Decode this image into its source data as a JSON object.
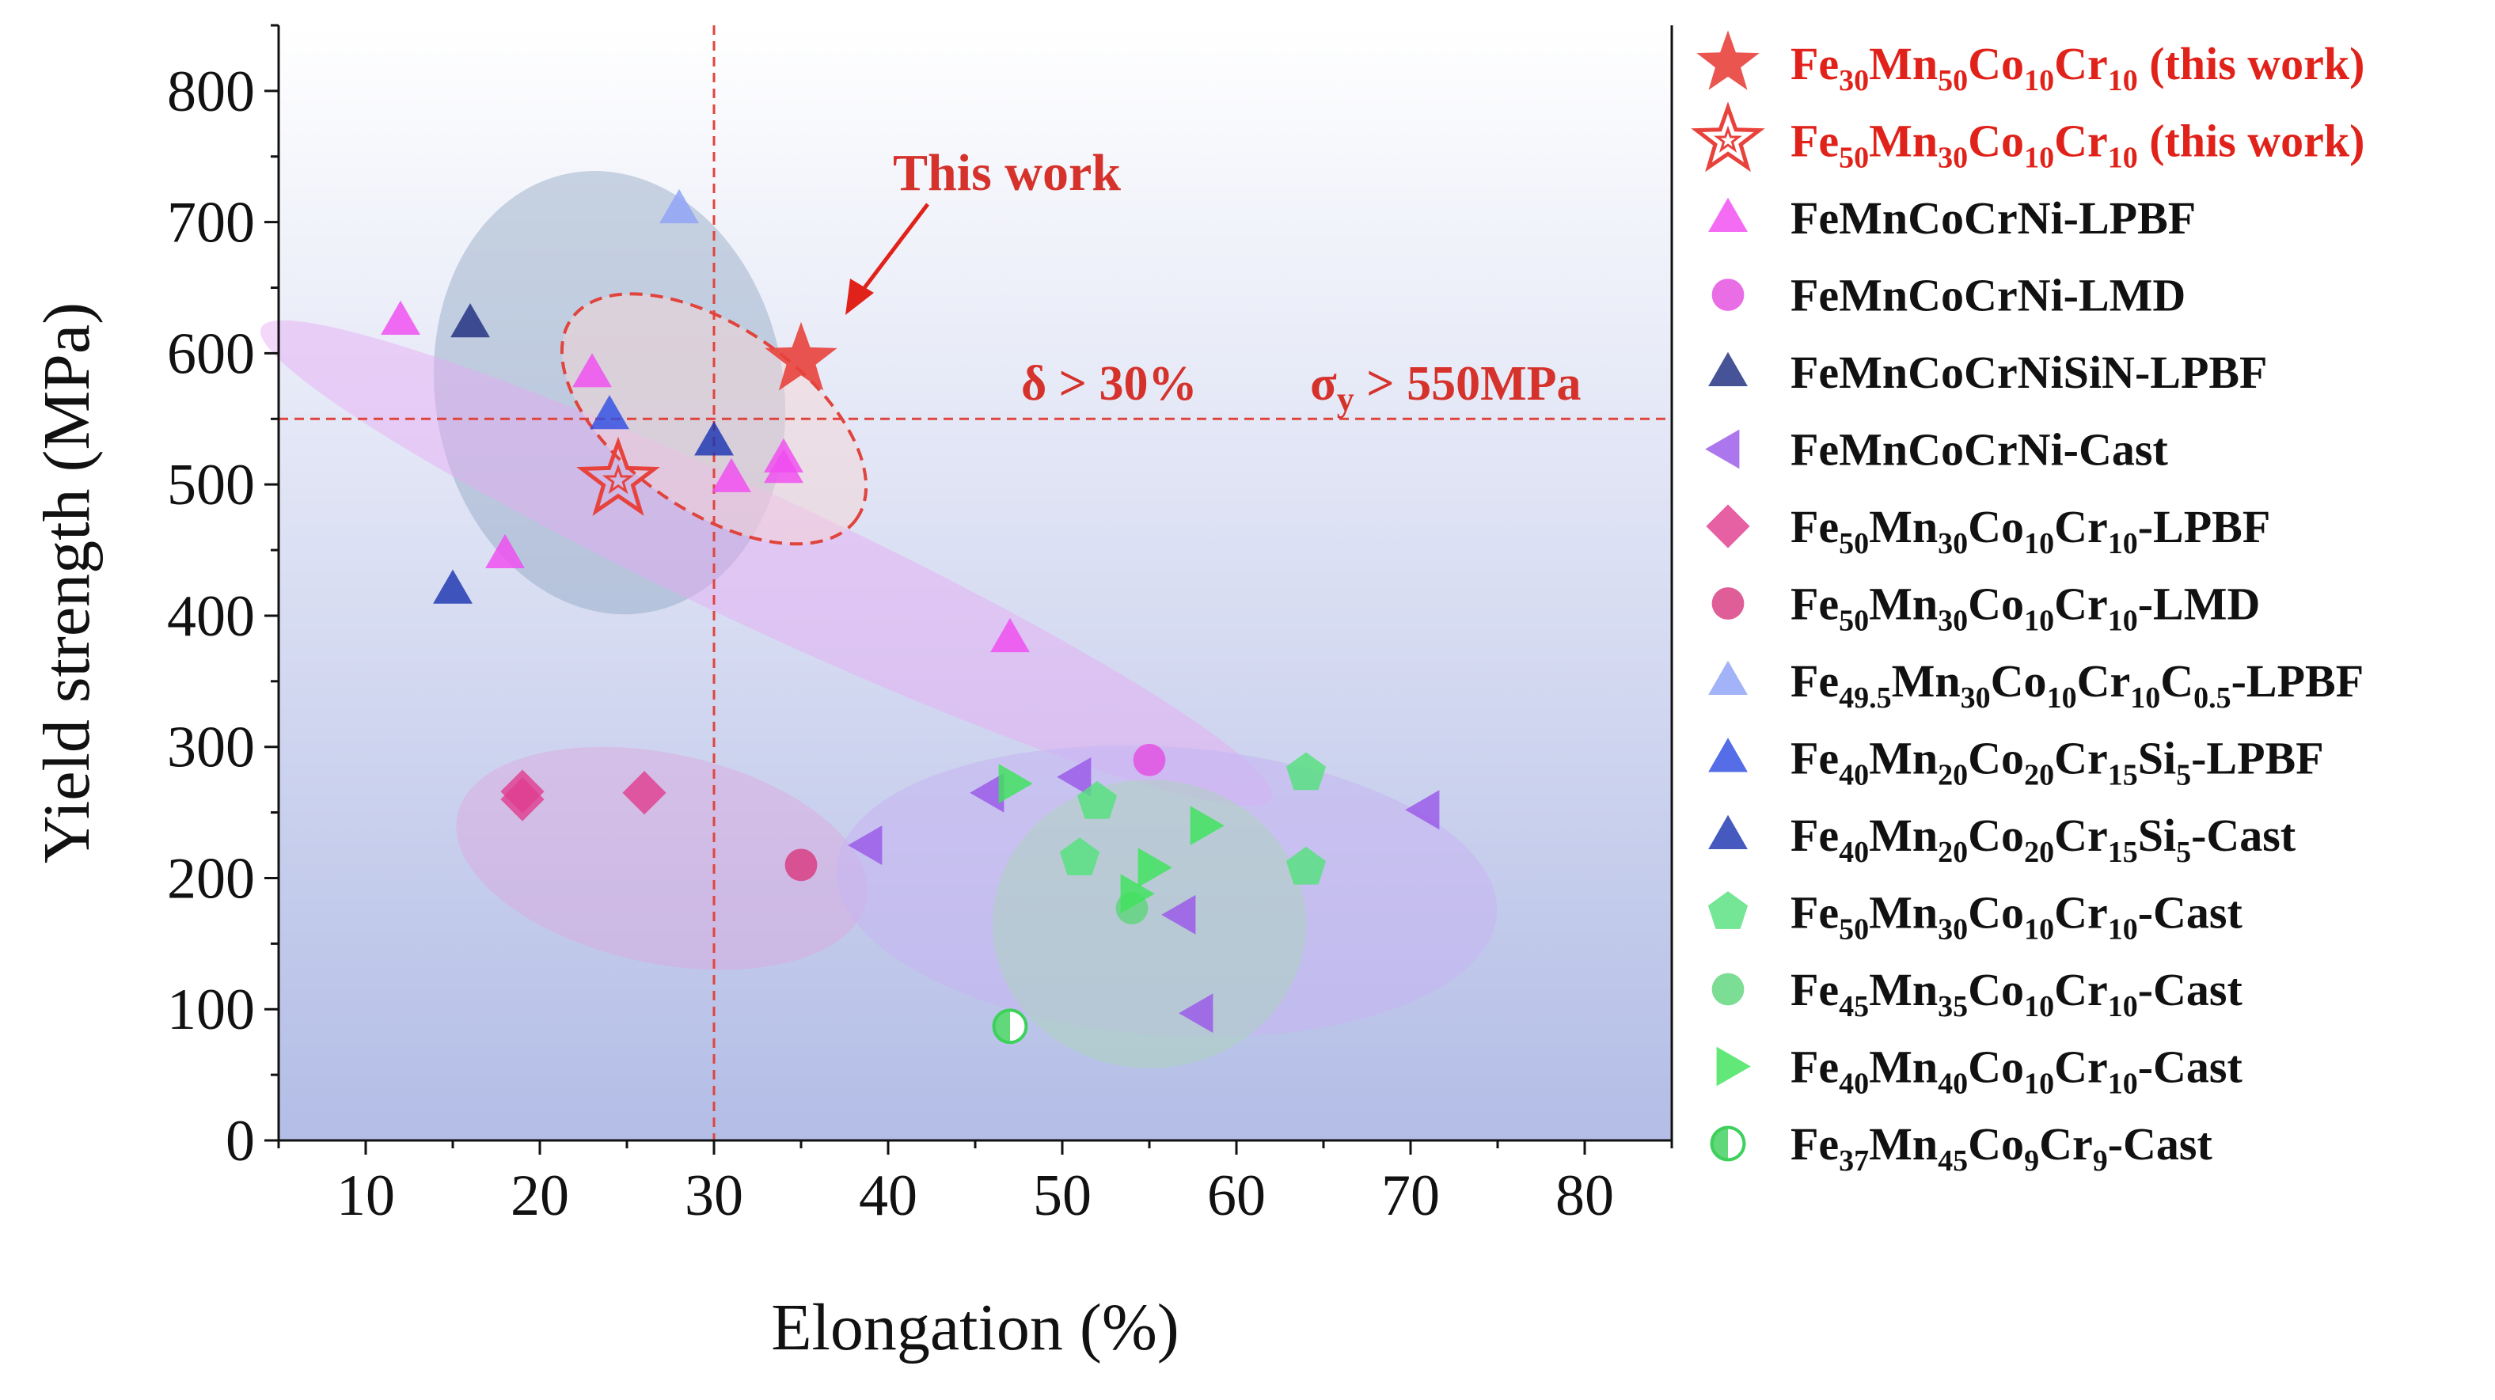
{
  "chart_data": {
    "type": "scatter",
    "xlabel": "Elongation (%)",
    "ylabel": "Yield strength (MPa)",
    "xlim": [
      5,
      85
    ],
    "ylim": [
      0,
      850
    ],
    "xticks": [
      10,
      20,
      30,
      40,
      50,
      60,
      70,
      80
    ],
    "yticks": [
      0,
      100,
      200,
      300,
      400,
      500,
      600,
      700,
      800
    ],
    "grid": false,
    "legend_placement": "right",
    "reference_lines": {
      "x": 30,
      "y": 550
    },
    "annotations": {
      "this_work": "This work",
      "delta": "δ > 30%",
      "sigma": "σ",
      "sigma_sub": "y",
      "sigma_rest": " > 550MPa"
    },
    "regions": [
      {
        "cx": 24,
        "cy": 570,
        "rx": 10,
        "ry": 170,
        "rot": -10,
        "fill": "#8fa3c2",
        "opacity": 0.45
      },
      {
        "cx": 33,
        "cy": 440,
        "rx": 32,
        "ry": 50,
        "rot": 25,
        "fill": "#e7a8f5",
        "opacity": 0.45
      },
      {
        "cx": 27,
        "cy": 215,
        "rx": 12,
        "ry": 80,
        "rot": 12,
        "fill": "#dca6dd",
        "opacity": 0.45
      },
      {
        "cx": 56,
        "cy": 190,
        "rx": 19,
        "ry": 110,
        "rot": 4,
        "fill": "#c7b4f2",
        "opacity": 0.55
      },
      {
        "cx": 55,
        "cy": 165,
        "rx": 9,
        "ry": 110,
        "rot": 0,
        "fill": "#a8d6b6",
        "opacity": 0.45
      },
      {
        "cx": 30,
        "cy": 550,
        "rx": 10,
        "ry": 70,
        "rot": 35,
        "fill": "#f5d5d5",
        "opacity": 0.5,
        "dashed": true,
        "stroke": "#e0443c"
      }
    ],
    "series": [
      {
        "name": "Fe30Mn50Co10Cr10 (this work)",
        "label_parts": [
          [
            "Fe",
            ""
          ],
          [
            "30",
            "sub"
          ],
          [
            "Mn",
            ""
          ],
          [
            "50",
            "sub"
          ],
          [
            "Co",
            ""
          ],
          [
            "10",
            "sub"
          ],
          [
            "Cr",
            ""
          ],
          [
            "10",
            "sub"
          ],
          [
            " (this work)",
            ""
          ]
        ],
        "marker": "star",
        "color": "#e8423c",
        "text_color": "#e0221a",
        "points": [
          [
            35,
            595
          ]
        ]
      },
      {
        "name": "Fe50Mn30Co10Cr10 (this work)",
        "label_parts": [
          [
            "Fe",
            ""
          ],
          [
            "50",
            "sub"
          ],
          [
            "Mn",
            ""
          ],
          [
            "30",
            "sub"
          ],
          [
            "Co",
            ""
          ],
          [
            "10",
            "sub"
          ],
          [
            "Cr",
            ""
          ],
          [
            "10",
            "sub"
          ],
          [
            " (this work)",
            ""
          ]
        ],
        "marker": "star-open",
        "color": "#e8423c",
        "text_color": "#e0221a",
        "points": [
          [
            24.5,
            503
          ]
        ]
      },
      {
        "name": "FeMnCoCrNi-LPBF",
        "label_parts": [
          [
            "FeMnCoCrNi-LPBF",
            ""
          ]
        ],
        "marker": "triangle-up",
        "color": "#f04cf0",
        "text_color": "#111111",
        "points": [
          [
            12,
            625
          ],
          [
            23,
            585
          ],
          [
            18,
            447
          ],
          [
            31,
            505
          ],
          [
            34,
            520
          ],
          [
            34,
            512
          ],
          [
            47,
            383
          ]
        ]
      },
      {
        "name": "FeMnCoCrNi-LMD",
        "label_parts": [
          [
            "FeMnCoCrNi-LMD",
            ""
          ]
        ],
        "marker": "circle",
        "color": "#e44ee0",
        "text_color": "#111111",
        "points": [
          [
            55,
            290
          ]
        ]
      },
      {
        "name": "FeMnCoCrNiSiN-LPBF",
        "label_parts": [
          [
            "FeMnCoCrNiSiN-LPBF",
            ""
          ]
        ],
        "marker": "triangle-up",
        "color": "#1f2d80",
        "text_color": "#111111",
        "points": [
          [
            16,
            623
          ]
        ]
      },
      {
        "name": "FeMnCoCrNi-Cast",
        "label_parts": [
          [
            "FeMnCoCrNi-Cast",
            ""
          ]
        ],
        "marker": "triangle-left",
        "color": "#9a58e8",
        "text_color": "#111111",
        "points": [
          [
            39,
            225
          ],
          [
            46,
            265
          ],
          [
            51,
            277
          ],
          [
            57,
            172
          ],
          [
            58,
            97
          ],
          [
            71,
            252
          ]
        ]
      },
      {
        "name": "Fe50Mn30Co10Cr10-LPBF",
        "label_parts": [
          [
            "Fe",
            ""
          ],
          [
            "50",
            "sub"
          ],
          [
            "Mn",
            ""
          ],
          [
            "30",
            "sub"
          ],
          [
            "Co",
            ""
          ],
          [
            "10",
            "sub"
          ],
          [
            "Cr",
            ""
          ],
          [
            "10",
            "sub"
          ],
          [
            "-LPBF",
            ""
          ]
        ],
        "marker": "diamond",
        "color": "#e03e90",
        "text_color": "#111111",
        "points": [
          [
            19,
            266
          ],
          [
            19,
            260
          ],
          [
            26,
            265
          ]
        ]
      },
      {
        "name": "Fe50Mn30Co10Cr10-LMD",
        "label_parts": [
          [
            "Fe",
            ""
          ],
          [
            "50",
            "sub"
          ],
          [
            "Mn",
            ""
          ],
          [
            "30",
            "sub"
          ],
          [
            "Co",
            ""
          ],
          [
            "10",
            "sub"
          ],
          [
            "Cr",
            ""
          ],
          [
            "10",
            "sub"
          ],
          [
            "-LMD",
            ""
          ]
        ],
        "marker": "circle",
        "color": "#d93a80",
        "text_color": "#111111",
        "points": [
          [
            35,
            210
          ]
        ]
      },
      {
        "name": "Fe49.5Mn30Co10Cr10C0.5-LPBF",
        "label_parts": [
          [
            "Fe",
            ""
          ],
          [
            "49.5",
            "sub"
          ],
          [
            "Mn",
            ""
          ],
          [
            "30",
            "sub"
          ],
          [
            "Co",
            ""
          ],
          [
            "10",
            "sub"
          ],
          [
            "Cr",
            ""
          ],
          [
            "10",
            "sub"
          ],
          [
            "C",
            ""
          ],
          [
            "0.5",
            "sub"
          ],
          [
            "-LPBF",
            ""
          ]
        ],
        "marker": "triangle-up",
        "color": "#8fa2f5",
        "text_color": "#111111",
        "points": [
          [
            28,
            710
          ]
        ]
      },
      {
        "name": "Fe40Mn20Co20Cr15Si5-LPBF",
        "label_parts": [
          [
            "Fe",
            ""
          ],
          [
            "40",
            "sub"
          ],
          [
            "Mn",
            ""
          ],
          [
            "20",
            "sub"
          ],
          [
            "Co",
            ""
          ],
          [
            "20",
            "sub"
          ],
          [
            "Cr",
            ""
          ],
          [
            "15",
            "sub"
          ],
          [
            "Si",
            ""
          ],
          [
            "5",
            "sub"
          ],
          [
            "-LPBF",
            ""
          ]
        ],
        "marker": "triangle-up",
        "color": "#2f4ee3",
        "text_color": "#111111",
        "points": [
          [
            24,
            553
          ]
        ]
      },
      {
        "name": "Fe40Mn20Co20Cr15Si5-Cast",
        "label_parts": [
          [
            "Fe",
            ""
          ],
          [
            "40",
            "sub"
          ],
          [
            "Mn",
            ""
          ],
          [
            "20",
            "sub"
          ],
          [
            "Co",
            ""
          ],
          [
            "20",
            "sub"
          ],
          [
            "Cr",
            ""
          ],
          [
            "15",
            "sub"
          ],
          [
            "Si",
            ""
          ],
          [
            "5",
            "sub"
          ],
          [
            "-Cast",
            ""
          ]
        ],
        "marker": "triangle-up",
        "color": "#1c34b0",
        "text_color": "#111111",
        "points": [
          [
            15,
            420
          ],
          [
            30,
            533
          ]
        ]
      },
      {
        "name": "Fe50Mn30Co10Cr10-Cast",
        "label_parts": [
          [
            "Fe",
            ""
          ],
          [
            "50",
            "sub"
          ],
          [
            "Mn",
            ""
          ],
          [
            "30",
            "sub"
          ],
          [
            "Co",
            ""
          ],
          [
            "10",
            "sub"
          ],
          [
            "Cr",
            ""
          ],
          [
            "10",
            "sub"
          ],
          [
            "-Cast",
            ""
          ]
        ],
        "marker": "pentagon",
        "color": "#55e07e",
        "text_color": "#111111",
        "points": [
          [
            52,
            258
          ],
          [
            64,
            280
          ],
          [
            64,
            208
          ],
          [
            51,
            215
          ]
        ]
      },
      {
        "name": "Fe45Mn35Co10Cr10-Cast",
        "label_parts": [
          [
            "Fe",
            ""
          ],
          [
            "45",
            "sub"
          ],
          [
            "Mn",
            ""
          ],
          [
            "35",
            "sub"
          ],
          [
            "Co",
            ""
          ],
          [
            "10",
            "sub"
          ],
          [
            "Cr",
            ""
          ],
          [
            "10",
            "sub"
          ],
          [
            "-Cast",
            ""
          ]
        ],
        "marker": "circle",
        "color": "#5fd67c",
        "text_color": "#111111",
        "points": [
          [
            54,
            177
          ]
        ]
      },
      {
        "name": "Fe40Mn40Co10Cr10-Cast",
        "label_parts": [
          [
            "Fe",
            ""
          ],
          [
            "40",
            "sub"
          ],
          [
            "Mn",
            ""
          ],
          [
            "40",
            "sub"
          ],
          [
            "Co",
            ""
          ],
          [
            "10",
            "sub"
          ],
          [
            "Cr",
            ""
          ],
          [
            "10",
            "sub"
          ],
          [
            "-Cast",
            ""
          ]
        ],
        "marker": "triangle-right",
        "color": "#3ee35c",
        "text_color": "#111111",
        "points": [
          [
            47,
            272
          ],
          [
            55,
            208
          ],
          [
            58,
            240
          ],
          [
            54,
            188
          ]
        ]
      },
      {
        "name": "Fe37Mn45Co9Cr9-Cast",
        "label_parts": [
          [
            "Fe",
            ""
          ],
          [
            "37",
            "sub"
          ],
          [
            "Mn",
            ""
          ],
          [
            "45",
            "sub"
          ],
          [
            "Co",
            ""
          ],
          [
            "9",
            "sub"
          ],
          [
            "Cr",
            ""
          ],
          [
            "9",
            "sub"
          ],
          [
            "-Cast",
            ""
          ]
        ],
        "marker": "circle-half",
        "color": "#3ed05c",
        "text_color": "#111111",
        "points": [
          [
            47,
            87
          ]
        ]
      }
    ]
  }
}
